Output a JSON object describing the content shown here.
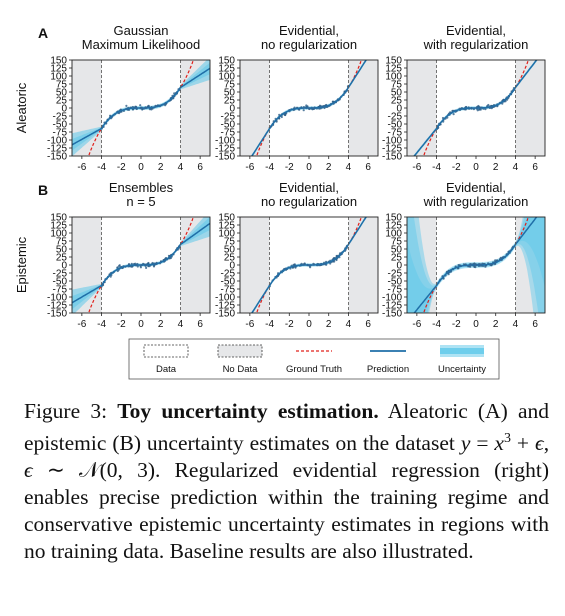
{
  "figure": {
    "rows": [
      {
        "label": "A",
        "ylabel": "Aleatoric",
        "panels": [
          {
            "title_lines": [
              "Gaussian",
              "Maximum Likelihood"
            ],
            "model": "gaussian_mle"
          },
          {
            "title_lines": [
              "Evidential,",
              "no regularization"
            ],
            "model": "evidential_noreg"
          },
          {
            "title_lines": [
              "Evidential,",
              "with regularization"
            ],
            "model": "evidential_reg"
          }
        ]
      },
      {
        "label": "B",
        "ylabel": "Epistemic",
        "panels": [
          {
            "title_lines": [
              "Ensembles",
              "n = 5"
            ],
            "model": "ensembles"
          },
          {
            "title_lines": [
              "Evidential,",
              "no regularization"
            ],
            "model": "evidential_noreg"
          },
          {
            "title_lines": [
              "Evidential,",
              "with regularization"
            ],
            "model": "evidential_reg"
          }
        ]
      }
    ],
    "legend": {
      "items": [
        {
          "label": "Data",
          "swatch": "data"
        },
        {
          "label": "No Data",
          "swatch": "nodata"
        },
        {
          "label": "Ground Truth",
          "swatch": "truth"
        },
        {
          "label": "Prediction",
          "swatch": "prediction"
        },
        {
          "label": "Uncertainty",
          "swatch": "uncertainty"
        }
      ]
    },
    "colors": {
      "prediction": "#1f6fa8",
      "uncertainty": "#5ec8ea",
      "ground_truth": "#e0201b",
      "no_data": "#e6e7e9",
      "data": "#2f5f88"
    }
  },
  "chart_data": {
    "type": "line",
    "function": "y = x^3 + noise",
    "xlim": [
      -7,
      7
    ],
    "ylim": [
      -150,
      150
    ],
    "xticks": [
      -6,
      -4,
      -2,
      0,
      2,
      4,
      6
    ],
    "yticks": [
      150,
      125,
      100,
      75,
      50,
      25,
      0,
      -25,
      -50,
      -75,
      -100,
      -125,
      -150
    ],
    "no_data_regions": [
      [
        -7,
        -4
      ],
      [
        4,
        7
      ]
    ],
    "training_range": [
      -4,
      4
    ],
    "series": [
      {
        "name": "Ground Truth"
      },
      {
        "name": "Prediction"
      },
      {
        "name": "Uncertainty"
      },
      {
        "name": "Data"
      }
    ]
  },
  "caption": {
    "figure_label": "Figure 3:",
    "title": "Toy uncertainty estimation.",
    "text_1": "Aleatoric (A) and epistemic (B) uncertainty estimates on the dataset",
    "equation_y": "y",
    "equation_eq": "=",
    "equation_x": "x",
    "equation_exp": "3",
    "equation_plus": "+",
    "equation_eps": "ϵ",
    "equation_comma": ",",
    "equation_eps2": "ϵ",
    "equation_sim": "∼",
    "equation_N": "𝒩",
    "equation_args": "(0, 3)",
    "text_2": ". Regularized evidential regression (right) enables precise prediction within the training regime and conservative epistemic uncertainty estimates in regions with no training data. Baseline results are also illustrated."
  }
}
